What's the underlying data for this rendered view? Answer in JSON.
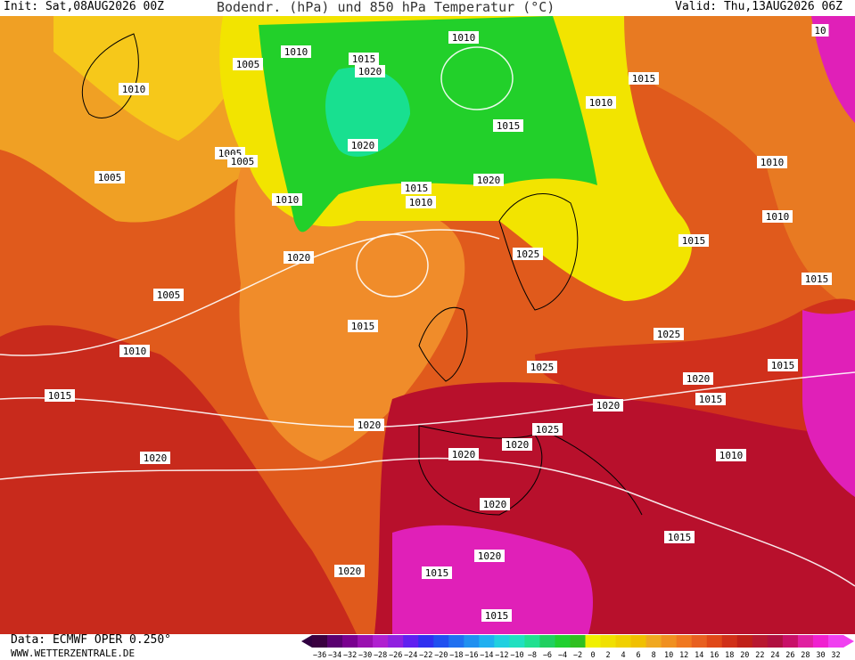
{
  "header": {
    "init": "Init: Sat,08AUG2026 00Z",
    "title": "Bodendr. (hPa) und 850 hPa Temperatur (°C)",
    "valid": "Valid: Thu,13AUG2026 06Z"
  },
  "footer": {
    "source": "Data: ECMWF OPER 0.250°",
    "url": "WWW.WETTERZENTRALE.DE"
  },
  "colorbar": {
    "labels": [
      "−36",
      "−34",
      "−32",
      "−30",
      "−28",
      "−26",
      "−24",
      "−22",
      "−20",
      "−18",
      "−16",
      "−14",
      "−12",
      "−10",
      "−8",
      "−6",
      "−4",
      "−2",
      "0",
      "2",
      "4",
      "6",
      "8",
      "10",
      "12",
      "14",
      "16",
      "18",
      "20",
      "22",
      "24",
      "26",
      "28",
      "30",
      "32"
    ]
  },
  "isobar_labels": [
    "1010",
    "1005",
    "1010",
    "1015",
    "1020",
    "1010",
    "1015",
    "1010",
    "1015",
    "1020",
    "1005",
    "1005",
    "1005",
    "1010",
    "1015",
    "1010",
    "1020",
    "1010",
    "1010",
    "1015",
    "1020",
    "1025",
    "1005",
    "1015",
    "1015",
    "1025",
    "1010",
    "1015",
    "1025",
    "1020",
    "1015",
    "1015",
    "1020",
    "1020",
    "1025",
    "1020",
    "1020",
    "1020",
    "1010",
    "1020",
    "1015",
    "1020",
    "1020",
    "1015",
    "1015",
    "10"
  ]
}
